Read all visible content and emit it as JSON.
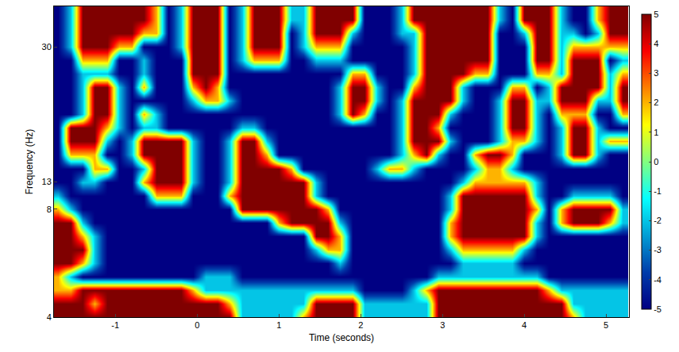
{
  "chart_data": {
    "type": "heatmap",
    "xlabel": "Time (seconds)",
    "ylabel": "Frequency (Hz)",
    "color": "Jet",
    "xlim": [
      -1.75,
      5.28
    ],
    "ylim": [
      4,
      35.1
    ],
    "xticks": [
      -1,
      0,
      1,
      2,
      3,
      4,
      5
    ],
    "yticks": [
      4,
      8,
      13,
      30
    ],
    "colorbar": {
      "range": [
        -5,
        5
      ],
      "ticks": [
        -5,
        -4,
        -3,
        -2,
        -1,
        0,
        1,
        2,
        3,
        4,
        5
      ]
    },
    "x": [
      -1.7,
      -1.55,
      -1.4,
      -1.25,
      -1.1,
      -0.95,
      -0.8,
      -0.65,
      -0.5,
      -0.35,
      -0.2,
      -0.05,
      0.1,
      0.25,
      0.4,
      0.55,
      0.7,
      0.85,
      1,
      1.15,
      1.3,
      1.45,
      1.6,
      1.75,
      1.9,
      2.05,
      2.2,
      2.35,
      2.5,
      2.65,
      2.8,
      2.95,
      3.1,
      3.25,
      3.4,
      3.55,
      3.7,
      3.85,
      4,
      4.15,
      4.3,
      4.45,
      4.6,
      4.75,
      4.9,
      5.05,
      5.2
    ],
    "y": [
      4,
      4.5,
      5,
      5.5,
      6,
      6.5,
      7,
      7.5,
      8,
      10.5,
      13,
      14.7,
      16.4,
      18.1,
      19.8,
      21.5,
      23.2,
      24.9,
      26.6,
      28.3,
      30,
      31.7,
      33.4,
      35.1
    ],
    "z": [
      [
        5,
        5,
        5,
        5,
        5,
        5,
        5,
        5,
        5,
        5,
        5,
        5,
        5,
        5,
        5,
        -2,
        -2,
        -2,
        -2,
        -2,
        2,
        5,
        5,
        5,
        5,
        -2,
        -2,
        -2,
        -2,
        -2,
        -2,
        5,
        5,
        5,
        5,
        5,
        5,
        5,
        5,
        5,
        5,
        5,
        2,
        -2,
        -2,
        -2,
        -2
      ],
      [
        5,
        5,
        5,
        2,
        5,
        5,
        5,
        5,
        5,
        5,
        5,
        5,
        5,
        5,
        2,
        -2,
        -2,
        -2,
        -2,
        -2,
        -2,
        5,
        5,
        5,
        5,
        -2,
        -2,
        -2,
        -2,
        -2,
        -2,
        5,
        5,
        5,
        5,
        5,
        5,
        5,
        5,
        5,
        5,
        5,
        -2,
        -2,
        -2,
        -2,
        -2
      ],
      [
        2,
        2,
        5,
        5,
        5,
        5,
        5,
        5,
        5,
        5,
        5,
        2,
        -2,
        -2,
        -2,
        -2,
        -2,
        -2,
        -2,
        -2,
        -2,
        -2,
        -2,
        -2,
        -2,
        -5,
        -5,
        -5,
        -5,
        -2,
        2,
        5,
        5,
        5,
        5,
        5,
        5,
        5,
        5,
        5,
        2,
        -2,
        -2,
        -2,
        -2,
        -2,
        -2
      ],
      [
        2,
        -2,
        -5,
        -5,
        -5,
        -5,
        -5,
        -5,
        -5,
        -5,
        -5,
        -5,
        -2,
        -2,
        -2,
        -5,
        -5,
        -5,
        -5,
        -5,
        -5,
        -5,
        -5,
        -5,
        -5,
        -5,
        -5,
        -5,
        -5,
        -5,
        -5,
        -2,
        -2,
        -2,
        -2,
        -2,
        -2,
        -2,
        -2,
        -2,
        -5,
        -5,
        -5,
        -5,
        -5,
        -5,
        -5
      ],
      [
        5,
        5,
        2,
        -2,
        -5,
        -5,
        -5,
        -5,
        -5,
        -5,
        -5,
        -5,
        -5,
        -5,
        -5,
        -5,
        -5,
        -5,
        -5,
        -5,
        -5,
        -5,
        -5,
        -2,
        -5,
        -5,
        -5,
        -5,
        -5,
        -5,
        -5,
        -5,
        -5,
        -2,
        -2,
        -2,
        -2,
        -2,
        -5,
        -5,
        -5,
        -5,
        -5,
        -5,
        -5,
        -5,
        -5
      ],
      [
        5,
        5,
        5,
        -2,
        -5,
        -5,
        -5,
        -5,
        -5,
        -5,
        -5,
        -5,
        -5,
        -5,
        -5,
        -5,
        -5,
        -5,
        -5,
        -5,
        -5,
        -2,
        2,
        2,
        -5,
        -5,
        -5,
        -5,
        -5,
        -5,
        -5,
        -5,
        -2,
        2,
        2,
        2,
        2,
        2,
        -2,
        -5,
        -5,
        -5,
        -5,
        -5,
        -5,
        -5,
        -5
      ],
      [
        5,
        5,
        2,
        -2,
        -5,
        -5,
        -5,
        -5,
        -5,
        -5,
        -5,
        -5,
        -5,
        -5,
        -5,
        -5,
        -5,
        -5,
        -5,
        -5,
        -5,
        5,
        5,
        2,
        -5,
        -5,
        -5,
        -5,
        -5,
        -5,
        -5,
        -5,
        2,
        5,
        5,
        5,
        5,
        5,
        5,
        -2,
        -5,
        -5,
        -5,
        -5,
        -5,
        -5,
        -5
      ],
      [
        5,
        5,
        -2,
        -5,
        -5,
        -5,
        -5,
        -5,
        -5,
        -5,
        -5,
        -5,
        -5,
        -5,
        -5,
        -5,
        -5,
        -5,
        2,
        5,
        5,
        5,
        5,
        -2,
        -5,
        -5,
        -5,
        -5,
        -5,
        -5,
        -5,
        -5,
        2,
        5,
        5,
        5,
        5,
        5,
        5,
        -2,
        -5,
        2,
        5,
        5,
        5,
        2,
        -2
      ],
      [
        2,
        -2,
        -5,
        -5,
        -5,
        -5,
        -5,
        -5,
        -5,
        -5,
        -5,
        -5,
        -5,
        -5,
        -5,
        5,
        5,
        5,
        5,
        5,
        5,
        5,
        2,
        -5,
        -5,
        -5,
        -5,
        -5,
        -5,
        -5,
        -5,
        -5,
        -2,
        5,
        5,
        5,
        5,
        5,
        5,
        2,
        -5,
        2,
        5,
        5,
        5,
        5,
        -2
      ],
      [
        -2,
        -5,
        -5,
        -5,
        -5,
        -5,
        -5,
        -5,
        2,
        2,
        2,
        -5,
        -5,
        -5,
        2,
        5,
        5,
        5,
        5,
        5,
        5,
        -2,
        -5,
        -5,
        -5,
        -5,
        -5,
        -5,
        -5,
        -5,
        -5,
        -5,
        -2,
        5,
        5,
        5,
        5,
        5,
        5,
        -2,
        -5,
        -5,
        -2,
        -2,
        -2,
        -2,
        -5
      ],
      [
        -5,
        -5,
        -2,
        -2,
        -5,
        -5,
        -5,
        2,
        5,
        5,
        5,
        -2,
        -5,
        -5,
        -2,
        5,
        5,
        5,
        5,
        5,
        5,
        -2,
        -5,
        -5,
        -5,
        -5,
        -5,
        -5,
        -5,
        -5,
        -5,
        -5,
        -5,
        -2,
        2,
        2,
        2,
        2,
        2,
        -2,
        -5,
        -5,
        -5,
        -5,
        -5,
        -5,
        -5
      ],
      [
        -5,
        -5,
        -5,
        2,
        2,
        -5,
        -5,
        -2,
        5,
        5,
        5,
        -2,
        -5,
        -5,
        -2,
        5,
        5,
        5,
        5,
        2,
        -5,
        -5,
        -5,
        -5,
        -5,
        -5,
        -2,
        2,
        2,
        -2,
        -5,
        -5,
        -5,
        -5,
        -2,
        2,
        2,
        -2,
        -5,
        -5,
        -5,
        -5,
        -5,
        -5,
        -5,
        -5,
        -5
      ],
      [
        -5,
        2,
        2,
        2,
        -5,
        -5,
        -2,
        5,
        5,
        5,
        5,
        -2,
        -5,
        -5,
        -2,
        5,
        5,
        2,
        -5,
        -5,
        -5,
        -5,
        -5,
        -5,
        -5,
        -5,
        -5,
        -5,
        -2,
        2,
        5,
        -2,
        -5,
        -5,
        2,
        5,
        5,
        2,
        -5,
        -5,
        -5,
        -2,
        5,
        5,
        -2,
        -5,
        -5
      ],
      [
        -5,
        5,
        5,
        5,
        -2,
        -5,
        -2,
        5,
        5,
        5,
        5,
        -2,
        -5,
        -5,
        -2,
        5,
        5,
        -2,
        -5,
        -5,
        -5,
        -5,
        -5,
        -5,
        -5,
        -5,
        -5,
        -5,
        -2,
        5,
        5,
        5,
        -2,
        -5,
        -5,
        -5,
        -2,
        2,
        2,
        -2,
        -5,
        -2,
        5,
        5,
        -2,
        2,
        2
      ],
      [
        -5,
        5,
        5,
        5,
        2,
        -2,
        -5,
        -2,
        -2,
        -5,
        -5,
        -5,
        -5,
        -5,
        -5,
        -2,
        -2,
        -5,
        -5,
        -5,
        -5,
        -5,
        -5,
        -5,
        -5,
        -5,
        -5,
        -5,
        -2,
        5,
        5,
        2,
        -5,
        -5,
        -5,
        -5,
        -2,
        5,
        5,
        -2,
        -5,
        -2,
        5,
        5,
        -2,
        -5,
        -5
      ],
      [
        -5,
        -5,
        -2,
        5,
        5,
        -2,
        -5,
        2,
        -2,
        -5,
        -5,
        -5,
        -5,
        -5,
        -5,
        -5,
        -5,
        -5,
        -5,
        -5,
        -5,
        -5,
        -5,
        -2,
        5,
        2,
        -5,
        -5,
        -2,
        5,
        5,
        5,
        -2,
        -5,
        -5,
        -5,
        -2,
        5,
        5,
        -2,
        -5,
        2,
        2,
        2,
        -5,
        -5,
        2
      ],
      [
        -5,
        -5,
        -2,
        5,
        5,
        -2,
        -5,
        -5,
        -5,
        -5,
        -5,
        -2,
        2,
        2,
        -2,
        -5,
        -5,
        -5,
        -5,
        -5,
        -5,
        -5,
        -5,
        -2,
        5,
        5,
        -2,
        -5,
        -2,
        5,
        5,
        5,
        5,
        -2,
        -5,
        -5,
        -2,
        5,
        5,
        -2,
        -2,
        5,
        5,
        5,
        -2,
        -2,
        5
      ],
      [
        -5,
        -5,
        -2,
        5,
        5,
        -2,
        -5,
        2,
        -5,
        -5,
        -5,
        2,
        5,
        2,
        -5,
        -5,
        -5,
        -5,
        -5,
        -5,
        -5,
        -5,
        -5,
        -2,
        5,
        5,
        -2,
        -5,
        -5,
        2,
        5,
        5,
        5,
        -2,
        -5,
        -5,
        -5,
        2,
        2,
        -5,
        -2,
        5,
        5,
        5,
        5,
        -2,
        5
      ],
      [
        -5,
        -5,
        -2,
        -2,
        -2,
        -5,
        -5,
        -2,
        -5,
        -5,
        -5,
        5,
        5,
        5,
        -5,
        -5,
        -5,
        -5,
        -5,
        -5,
        -5,
        -5,
        -5,
        -5,
        2,
        2,
        -5,
        -5,
        -5,
        -2,
        5,
        5,
        5,
        5,
        2,
        2,
        -5,
        -5,
        -5,
        2,
        2,
        -2,
        5,
        5,
        5,
        -2,
        2
      ],
      [
        -5,
        -5,
        2,
        2,
        2,
        -5,
        -5,
        -2,
        -5,
        -5,
        -5,
        5,
        5,
        5,
        -5,
        -2,
        2,
        2,
        2,
        -5,
        -5,
        -2,
        -2,
        -2,
        -5,
        -5,
        -5,
        -5,
        -5,
        -2,
        5,
        5,
        5,
        5,
        5,
        5,
        -5,
        -5,
        -5,
        5,
        5,
        -2,
        5,
        5,
        5,
        -5,
        -2
      ],
      [
        -5,
        -2,
        5,
        5,
        5,
        2,
        2,
        -5,
        -5,
        -5,
        -2,
        5,
        5,
        5,
        -5,
        -2,
        5,
        5,
        5,
        -5,
        -2,
        2,
        2,
        2,
        -5,
        -5,
        -5,
        -5,
        -5,
        -2,
        5,
        5,
        5,
        5,
        5,
        5,
        -5,
        -5,
        -5,
        5,
        5,
        -2,
        2,
        2,
        2,
        2,
        2
      ],
      [
        -5,
        -2,
        5,
        5,
        5,
        5,
        5,
        2,
        2,
        -5,
        -2,
        5,
        5,
        5,
        -5,
        -2,
        5,
        5,
        5,
        -5,
        -2,
        5,
        5,
        5,
        -2,
        -5,
        -5,
        -5,
        -2,
        -2,
        5,
        5,
        5,
        5,
        5,
        5,
        -5,
        -5,
        -2,
        5,
        5,
        -2,
        -2,
        -5,
        -2,
        5,
        5
      ],
      [
        -5,
        -2,
        5,
        5,
        5,
        5,
        5,
        5,
        2,
        -5,
        -2,
        5,
        5,
        5,
        -5,
        -2,
        5,
        5,
        5,
        -2,
        -2,
        5,
        5,
        5,
        5,
        -5,
        -5,
        -5,
        -2,
        5,
        5,
        5,
        5,
        5,
        5,
        5,
        -2,
        -5,
        5,
        5,
        5,
        -2,
        -5,
        -5,
        2,
        5,
        5
      ],
      [
        -5,
        -2,
        5,
        5,
        5,
        5,
        5,
        5,
        2,
        -5,
        -2,
        5,
        5,
        5,
        -5,
        -2,
        5,
        5,
        5,
        -2,
        -2,
        5,
        5,
        5,
        5,
        -5,
        -5,
        -5,
        -2,
        5,
        5,
        5,
        5,
        5,
        5,
        5,
        -2,
        -5,
        5,
        5,
        5,
        -2,
        -5,
        -5,
        2,
        5,
        5
      ]
    ]
  }
}
